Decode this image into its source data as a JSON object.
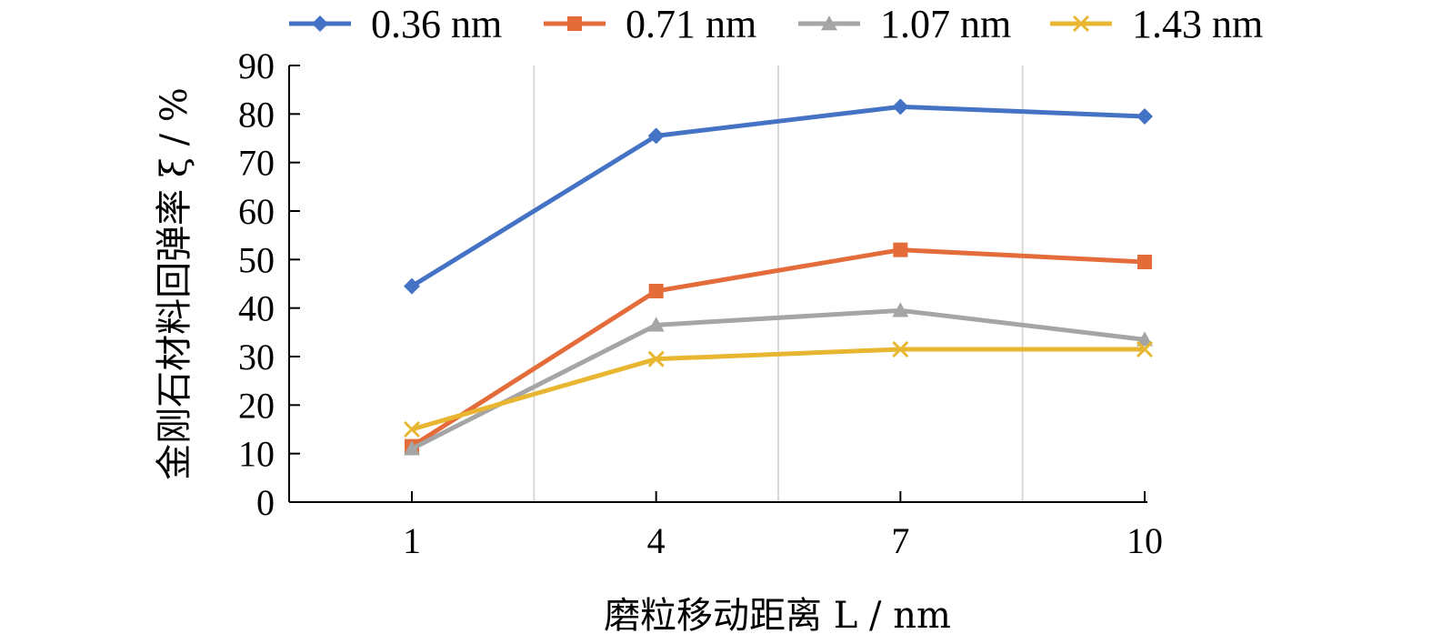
{
  "chart_data": {
    "type": "line",
    "x": [
      1,
      4,
      7,
      10
    ],
    "xlabel": "磨粒移动距离 L / nm",
    "ylabel": "金刚石材料回弹率 ξ / %",
    "ylim": [
      0,
      90
    ],
    "yticks": [
      0,
      10,
      20,
      30,
      40,
      50,
      60,
      70,
      80,
      90
    ],
    "xticks": [
      1,
      4,
      7,
      10
    ],
    "grid": "vertical gridlines between categories",
    "legend_position": "top",
    "series": [
      {
        "name": "0.36 nm",
        "values": [
          44.5,
          75.5,
          81.5,
          79.5
        ],
        "color": "#4472C4",
        "marker": "diamond"
      },
      {
        "name": "0.71 nm",
        "values": [
          11.5,
          43.5,
          52,
          49.5
        ],
        "color": "#E46C3A",
        "marker": "square"
      },
      {
        "name": "1.07 nm",
        "values": [
          11,
          36.5,
          39.5,
          33.5
        ],
        "color": "#A5A5A5",
        "marker": "triangle"
      },
      {
        "name": "1.43 nm",
        "values": [
          15,
          29.5,
          31.5,
          31.5
        ],
        "color": "#E8B630",
        "marker": "x"
      }
    ]
  }
}
